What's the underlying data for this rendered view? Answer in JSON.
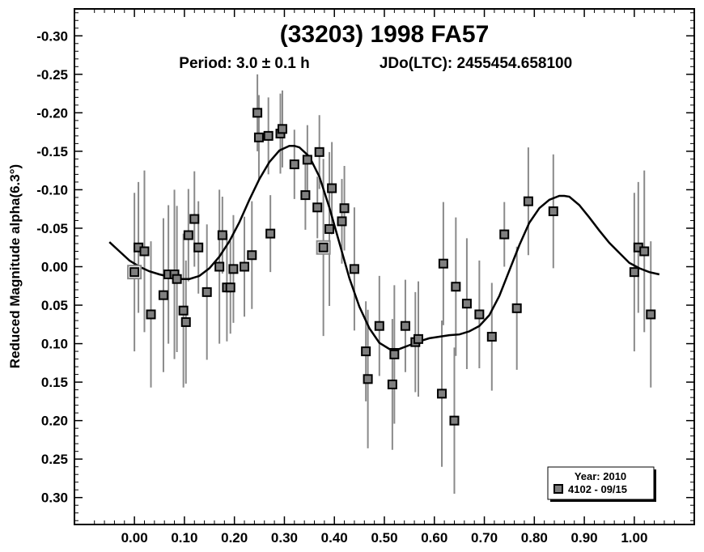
{
  "chart_data": {
    "type": "scatter",
    "title": "(33203) 1998 FA57",
    "subtitle_period": "Period: 3.0 ± 0.1 h",
    "subtitle_epoch": "JDo(LTC): 2455454.658100",
    "xlabel": "",
    "ylabel": "Reduced Magnitude alpha(6.3°)",
    "xlim": [
      -0.12,
      1.12
    ],
    "ylim": [
      -0.335,
      0.335
    ],
    "y_inverted": true,
    "x_ticks": [
      "0.00",
      "0.10",
      "0.20",
      "0.30",
      "0.40",
      "0.50",
      "0.60",
      "0.70",
      "0.80",
      "0.90",
      "1.00"
    ],
    "x_tick_values": [
      0,
      0.1,
      0.2,
      0.3,
      0.4,
      0.5,
      0.6,
      0.7,
      0.8,
      0.9,
      1.0
    ],
    "y_ticks": [
      "-0.30",
      "-0.25",
      "-0.20",
      "-0.15",
      "-0.10",
      "-0.05",
      "0.00",
      "0.05",
      "0.10",
      "0.15",
      "0.20",
      "0.25",
      "0.30"
    ],
    "y_tick_values": [
      -0.3,
      -0.25,
      -0.2,
      -0.15,
      -0.1,
      -0.05,
      0,
      0.05,
      0.1,
      0.15,
      0.2,
      0.25,
      0.3
    ],
    "grid": false,
    "legend": {
      "placement": "bottom-right",
      "title": "Year: 2010",
      "entries": [
        "4102 - 09/15"
      ]
    },
    "series": [
      {
        "name": "4102 - 09/15",
        "marker": "square",
        "color": "#7f7f7f",
        "points": [
          {
            "x": 0.0,
            "y": 0.007,
            "err": 0.103,
            "open": true
          },
          {
            "x": 0.008,
            "y": -0.025,
            "err": 0.085
          },
          {
            "x": 0.02,
            "y": -0.02,
            "err": 0.105
          },
          {
            "x": 0.033,
            "y": 0.062,
            "err": 0.095
          },
          {
            "x": 0.058,
            "y": 0.037,
            "err": 0.1
          },
          {
            "x": 0.068,
            "y": 0.01,
            "err": 0.09
          },
          {
            "x": 0.08,
            "y": 0.01,
            "err": 0.11
          },
          {
            "x": 0.085,
            "y": 0.016,
            "err": 0.095
          },
          {
            "x": 0.098,
            "y": 0.057,
            "err": 0.1
          },
          {
            "x": 0.103,
            "y": 0.072,
            "err": 0.08
          },
          {
            "x": 0.108,
            "y": -0.041,
            "err": 0.06
          },
          {
            "x": 0.12,
            "y": -0.062,
            "err": 0.062
          },
          {
            "x": 0.128,
            "y": -0.025,
            "err": 0.06
          },
          {
            "x": 0.145,
            "y": 0.033,
            "err": 0.088
          },
          {
            "x": 0.17,
            "y": 0.0,
            "err": 0.1
          },
          {
            "x": 0.176,
            "y": -0.041,
            "err": 0.05
          },
          {
            "x": 0.185,
            "y": 0.027,
            "err": 0.07
          },
          {
            "x": 0.192,
            "y": 0.027,
            "err": 0.06
          },
          {
            "x": 0.198,
            "y": 0.003,
            "err": 0.07
          },
          {
            "x": 0.22,
            "y": 0.0,
            "err": 0.065
          },
          {
            "x": 0.235,
            "y": -0.015,
            "err": 0.07
          },
          {
            "x": 0.246,
            "y": -0.2,
            "err": 0.05
          },
          {
            "x": 0.249,
            "y": -0.168,
            "err": 0.055
          },
          {
            "x": 0.268,
            "y": -0.17,
            "err": 0.05
          },
          {
            "x": 0.272,
            "y": -0.043,
            "err": 0.05
          },
          {
            "x": 0.292,
            "y": -0.173,
            "err": 0.052
          },
          {
            "x": 0.296,
            "y": -0.179,
            "err": 0.05
          },
          {
            "x": 0.32,
            "y": -0.133,
            "err": 0.045
          },
          {
            "x": 0.342,
            "y": -0.093,
            "err": 0.045
          },
          {
            "x": 0.346,
            "y": -0.139,
            "err": 0.045
          },
          {
            "x": 0.366,
            "y": -0.077,
            "err": 0.04
          },
          {
            "x": 0.37,
            "y": -0.149,
            "err": 0.048
          },
          {
            "x": 0.378,
            "y": -0.025,
            "err": 0.115,
            "open": true
          },
          {
            "x": 0.39,
            "y": -0.049,
            "err": 0.1
          },
          {
            "x": 0.395,
            "y": -0.102,
            "err": 0.06
          },
          {
            "x": 0.415,
            "y": -0.059,
            "err": 0.055
          },
          {
            "x": 0.42,
            "y": -0.076,
            "err": 0.055
          },
          {
            "x": 0.44,
            "y": 0.003,
            "err": 0.08
          },
          {
            "x": 0.463,
            "y": 0.11,
            "err": 0.065
          },
          {
            "x": 0.467,
            "y": 0.146,
            "err": 0.09
          },
          {
            "x": 0.49,
            "y": 0.077,
            "err": 0.065
          },
          {
            "x": 0.516,
            "y": 0.153,
            "err": 0.085
          },
          {
            "x": 0.52,
            "y": 0.114,
            "err": 0.09
          },
          {
            "x": 0.542,
            "y": 0.077,
            "err": 0.06
          },
          {
            "x": 0.562,
            "y": 0.098,
            "err": 0.065
          },
          {
            "x": 0.568,
            "y": 0.094,
            "err": 0.075
          },
          {
            "x": 0.615,
            "y": 0.165,
            "err": 0.095
          },
          {
            "x": 0.618,
            "y": -0.004,
            "err": 0.08
          },
          {
            "x": 0.64,
            "y": 0.2,
            "err": 0.095
          },
          {
            "x": 0.643,
            "y": 0.026,
            "err": 0.09
          },
          {
            "x": 0.665,
            "y": 0.048,
            "err": 0.085
          },
          {
            "x": 0.69,
            "y": 0.062,
            "err": 0.07
          },
          {
            "x": 0.715,
            "y": 0.091,
            "err": 0.07
          },
          {
            "x": 0.74,
            "y": -0.042,
            "err": 0.042
          },
          {
            "x": 0.765,
            "y": 0.054,
            "err": 0.08
          },
          {
            "x": 0.788,
            "y": -0.085,
            "err": 0.07
          },
          {
            "x": 0.838,
            "y": -0.072,
            "err": 0.074
          },
          {
            "x": 1.0,
            "y": 0.007,
            "err": 0.103
          },
          {
            "x": 1.008,
            "y": -0.025,
            "err": 0.085
          },
          {
            "x": 1.02,
            "y": -0.02,
            "err": 0.105
          },
          {
            "x": 1.033,
            "y": 0.062,
            "err": 0.095
          }
        ]
      }
    ],
    "fit_curve": {
      "color": "#000000",
      "points": [
        [
          -0.05,
          -0.032
        ],
        [
          -0.03,
          -0.02
        ],
        [
          -0.01,
          -0.008
        ],
        [
          0.01,
          0.0
        ],
        [
          0.03,
          0.006
        ],
        [
          0.05,
          0.01
        ],
        [
          0.07,
          0.013
        ],
        [
          0.09,
          0.016
        ],
        [
          0.11,
          0.016
        ],
        [
          0.13,
          0.012
        ],
        [
          0.15,
          0.002
        ],
        [
          0.17,
          -0.013
        ],
        [
          0.19,
          -0.033
        ],
        [
          0.21,
          -0.058
        ],
        [
          0.23,
          -0.087
        ],
        [
          0.25,
          -0.114
        ],
        [
          0.27,
          -0.136
        ],
        [
          0.29,
          -0.151
        ],
        [
          0.31,
          -0.157
        ],
        [
          0.32,
          -0.157
        ],
        [
          0.33,
          -0.155
        ],
        [
          0.35,
          -0.143
        ],
        [
          0.37,
          -0.117
        ],
        [
          0.39,
          -0.077
        ],
        [
          0.41,
          -0.031
        ],
        [
          0.43,
          0.015
        ],
        [
          0.45,
          0.052
        ],
        [
          0.47,
          0.08
        ],
        [
          0.49,
          0.099
        ],
        [
          0.51,
          0.107
        ],
        [
          0.53,
          0.107
        ],
        [
          0.55,
          0.102
        ],
        [
          0.57,
          0.097
        ],
        [
          0.59,
          0.093
        ],
        [
          0.61,
          0.091
        ],
        [
          0.63,
          0.089
        ],
        [
          0.65,
          0.088
        ],
        [
          0.67,
          0.084
        ],
        [
          0.69,
          0.077
        ],
        [
          0.71,
          0.063
        ],
        [
          0.73,
          0.038
        ],
        [
          0.75,
          0.005
        ],
        [
          0.77,
          -0.028
        ],
        [
          0.79,
          -0.057
        ],
        [
          0.81,
          -0.076
        ],
        [
          0.83,
          -0.087
        ],
        [
          0.85,
          -0.092
        ],
        [
          0.86,
          -0.092
        ],
        [
          0.87,
          -0.091
        ],
        [
          0.89,
          -0.08
        ],
        [
          0.91,
          -0.064
        ],
        [
          0.93,
          -0.047
        ],
        [
          0.95,
          -0.031
        ],
        [
          0.97,
          -0.018
        ],
        [
          0.99,
          -0.005
        ],
        [
          1.01,
          0.002
        ],
        [
          1.03,
          0.007
        ],
        [
          1.05,
          0.01
        ]
      ]
    }
  }
}
